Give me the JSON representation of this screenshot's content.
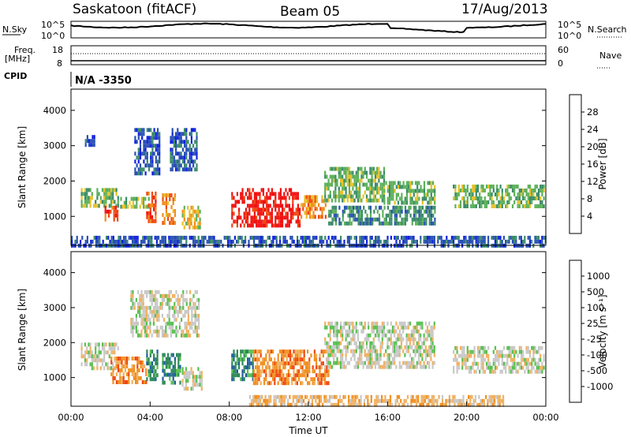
{
  "header": {
    "station": "Saskatoon (fitACF)",
    "beam": "Beam 05",
    "date": "17/Aug/2013"
  },
  "top_panels": {
    "nsky_label": "N.Sky",
    "nsky_ticks": [
      "10^5",
      "10^0"
    ],
    "nsearch_label": "N.Search",
    "nsearch_ticks": [
      "10^5",
      "10^0"
    ],
    "freq_label": "Freq.",
    "freq_unit": "[MHz]",
    "freq_ticks": [
      "18",
      "8"
    ],
    "nave_label": "Nave",
    "nave_ticks": [
      "60",
      "0"
    ],
    "cpid_label": "CPID",
    "cpid_value": "N/A -3350"
  },
  "chart_data": [
    {
      "type": "heatmap",
      "name": "power",
      "ylabel": "Slant Range [km]",
      "ylim": [
        180,
        4600
      ],
      "yticks": [
        1000,
        2000,
        3000,
        4000
      ],
      "colorbar": {
        "label": "Power [dB]",
        "ticks": [
          "4",
          "8",
          "12",
          "16",
          "20",
          "24",
          "28"
        ],
        "range": [
          0,
          30
        ],
        "colors": [
          "#1020e0",
          "#2850b4",
          "#3a8a68",
          "#5cb05a",
          "#e8c028",
          "#f08c1c",
          "#f04810",
          "#f01010"
        ]
      },
      "regions": [
        {
          "t0": 0.5,
          "t1": 2.4,
          "r0": 1300,
          "r1": 1800,
          "level": 3
        },
        {
          "t0": 0.7,
          "t1": 1.2,
          "r0": 3000,
          "r1": 3300,
          "level": 1
        },
        {
          "t0": 1.7,
          "t1": 2.4,
          "r0": 950,
          "r1": 1300,
          "level": 6
        },
        {
          "t0": 2.4,
          "t1": 3.9,
          "r0": 1250,
          "r1": 1550,
          "level": 3
        },
        {
          "t0": 3.8,
          "t1": 4.3,
          "r0": 900,
          "r1": 1700,
          "level": 6
        },
        {
          "t0": 4.6,
          "t1": 5.3,
          "r0": 850,
          "r1": 1650,
          "level": 5
        },
        {
          "t0": 5.6,
          "t1": 6.5,
          "r0": 700,
          "r1": 1300,
          "level": 4
        },
        {
          "t0": 3.2,
          "t1": 4.5,
          "r0": 2200,
          "r1": 3500,
          "level": 1
        },
        {
          "t0": 5.0,
          "t1": 6.4,
          "r0": 2300,
          "r1": 3500,
          "level": 1
        },
        {
          "t0": 8.1,
          "t1": 11.6,
          "r0": 750,
          "r1": 1800,
          "level": 7
        },
        {
          "t0": 11.6,
          "t1": 12.9,
          "r0": 1000,
          "r1": 1600,
          "level": 5
        },
        {
          "t0": 12.8,
          "t1": 15.8,
          "r0": 1400,
          "r1": 2400,
          "level": 3
        },
        {
          "t0": 15.8,
          "t1": 18.4,
          "r0": 1400,
          "r1": 2000,
          "level": 3
        },
        {
          "t0": 13.0,
          "t1": 18.4,
          "r0": 800,
          "r1": 1300,
          "level": 2
        },
        {
          "t0": 19.3,
          "t1": 23.9,
          "r0": 1300,
          "r1": 1900,
          "level": 3
        },
        {
          "t0": 0.0,
          "t1": 24.0,
          "r0": 200,
          "r1": 450,
          "level": 1
        }
      ]
    },
    {
      "type": "heatmap",
      "name": "velocity",
      "ylabel": "Slant Range [km]",
      "xlabel": "Time UT",
      "ylim": [
        180,
        4600
      ],
      "yticks": [
        1000,
        2000,
        3000,
        4000
      ],
      "xlim": [
        0,
        24
      ],
      "xticks": [
        "00:00",
        "04:00",
        "08:00",
        "12:00",
        "16:00",
        "20:00",
        "00:00"
      ],
      "colorbar": {
        "label": "Velocity [m s⁻¹]",
        "ticks": [
          "1000",
          "500",
          "100",
          "25",
          "-25",
          "-100",
          "-500",
          "-1000"
        ],
        "colors": [
          "#1830c8",
          "#205ca0",
          "#2c8858",
          "#58c050",
          "#c8c8c8",
          "#f0b060",
          "#f09020",
          "#f04810",
          "#f01010"
        ]
      },
      "regions": [
        {
          "t0": 0.5,
          "t1": 2.4,
          "r0": 1300,
          "r1": 2000,
          "level": 4
        },
        {
          "t0": 2.0,
          "t1": 3.8,
          "r0": 900,
          "r1": 1600,
          "level": 6
        },
        {
          "t0": 3.8,
          "t1": 4.4,
          "r0": 900,
          "r1": 1800,
          "level": 2
        },
        {
          "t0": 4.6,
          "t1": 5.5,
          "r0": 850,
          "r1": 1700,
          "level": 2
        },
        {
          "t0": 5.6,
          "t1": 6.6,
          "r0": 700,
          "r1": 1300,
          "level": 4
        },
        {
          "t0": 3.0,
          "t1": 6.5,
          "r0": 2200,
          "r1": 3500,
          "level": 4
        },
        {
          "t0": 8.1,
          "t1": 9.2,
          "r0": 1000,
          "r1": 1800,
          "level": 2
        },
        {
          "t0": 9.2,
          "t1": 13.0,
          "r0": 800,
          "r1": 1800,
          "level": 6
        },
        {
          "t0": 12.8,
          "t1": 18.4,
          "r0": 1300,
          "r1": 2600,
          "level": 4
        },
        {
          "t0": 19.3,
          "t1": 23.9,
          "r0": 1200,
          "r1": 1900,
          "level": 4
        },
        {
          "t0": 9.0,
          "t1": 22.0,
          "r0": 200,
          "r1": 500,
          "level": 5
        }
      ]
    }
  ]
}
